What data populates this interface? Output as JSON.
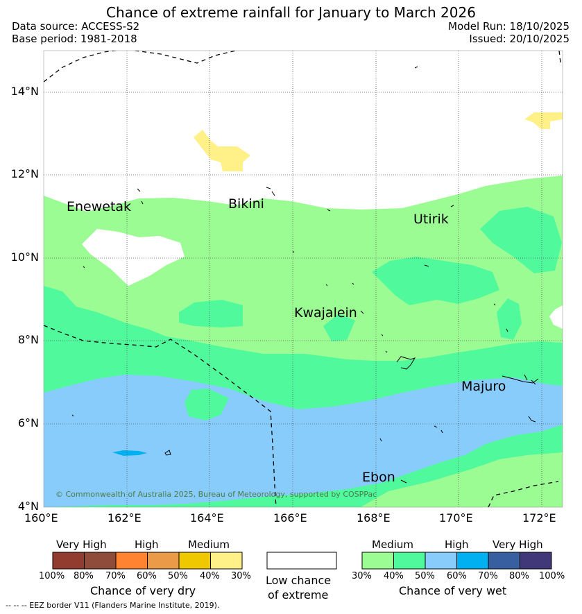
{
  "header": {
    "title": "Chance of extreme rainfall for January to March 2026",
    "data_source": "Data source: ACCESS-S2",
    "base_period": "Base period: 1981-2018",
    "model_run": "Model Run: 18/10/2025",
    "issued": "Issued: 20/10/2025"
  },
  "map": {
    "lat_ticks": [
      "14°N",
      "12°N",
      "10°N",
      "8°N",
      "6°N",
      "4°N"
    ],
    "lon_ticks": [
      "160°E",
      "162°E",
      "164°E",
      "166°E",
      "168°E",
      "170°E",
      "172°E"
    ],
    "places": [
      "Enewetak",
      "Bikini",
      "Utirik",
      "Kwajalein",
      "Majuro",
      "Ebon"
    ],
    "copyright": "© Commonwealth of Australia 2025, Bureau of Meteorology, supported by COSPPac"
  },
  "legend_dry": {
    "levels": [
      "Very High",
      "High",
      "Medium"
    ],
    "percents": [
      "100%",
      "80%",
      "70%",
      "60%",
      "50%",
      "40%",
      "30%"
    ],
    "colors": [
      "#923c30",
      "#8f4c3a",
      "#ff8330",
      "#eb9b48",
      "#f0c800",
      "#fff088"
    ],
    "caption": "Chance of very dry"
  },
  "legend_low": {
    "caption_line1": "Low chance",
    "caption_line2": "of extreme"
  },
  "legend_wet": {
    "levels": [
      "Medium",
      "High",
      "Very High"
    ],
    "percents": [
      "30%",
      "40%",
      "50%",
      "60%",
      "70%",
      "80%",
      "100%"
    ],
    "colors": [
      "#9cfc94",
      "#50fa9c",
      "#88ccfc",
      "#00b0f0",
      "#3860a0",
      "#403878"
    ],
    "caption": "Chance of very wet"
  },
  "footnote": "--  --  -- EEZ border V11 (Flanders Marine Institute, 2019)."
}
